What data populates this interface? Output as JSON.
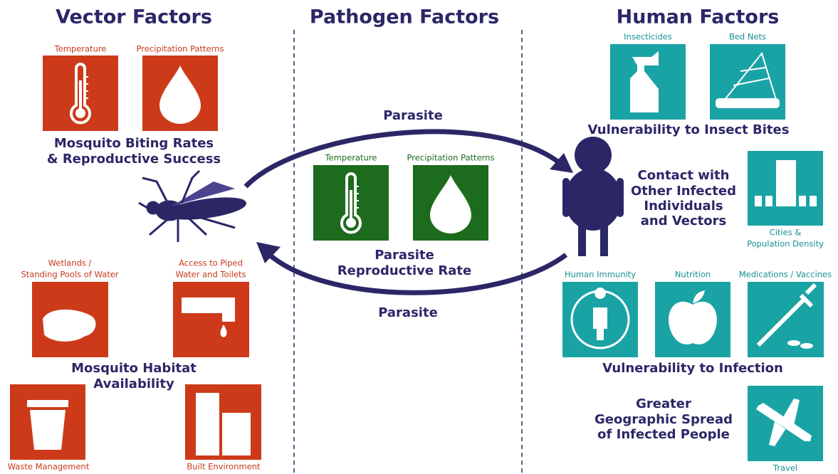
{
  "vector_factors": {
    "title": "Vector Factors",
    "biting": {
      "icons": [
        "Temperature",
        "Precipitation Patterns"
      ],
      "caption": [
        "Mosquito Biting Rates",
        "& Reproductive Success"
      ]
    },
    "habitat": {
      "icons": [
        [
          "Wetlands /",
          "Standing Pools of Water"
        ],
        [
          "Access to Piped",
          "Water and Toilets"
        ],
        [
          "Waste Management"
        ],
        [
          "Built Environment"
        ]
      ],
      "caption": [
        "Mosquito Habitat",
        "Availability"
      ]
    }
  },
  "pathogen_factors": {
    "title": "Pathogen Factors",
    "icons": [
      "Temperature",
      "Precipitation Patterns"
    ],
    "caption": [
      "Parasite",
      "Reproductive Rate"
    ]
  },
  "transmission": {
    "to_human": "Parasite",
    "to_vector": "Parasite"
  },
  "human_factors": {
    "title": "Human Factors",
    "bites": {
      "icons": [
        "Insecticides",
        "Bed Nets"
      ],
      "caption": [
        "Vulnerability to Insect Bites"
      ]
    },
    "contact": {
      "caption": [
        "Contact with",
        "Other Infected",
        "Individuals",
        "and Vectors"
      ],
      "icon": [
        "Cities &",
        "Population Density"
      ]
    },
    "infection": {
      "icons": [
        "Human Immunity",
        "Nutrition",
        "Medications / Vaccines"
      ],
      "caption": [
        "Vulnerability to Infection"
      ]
    },
    "spread": {
      "caption": [
        "Greater",
        "Geographic Spread",
        "of Infected People"
      ],
      "icon": [
        "Travel"
      ]
    }
  }
}
